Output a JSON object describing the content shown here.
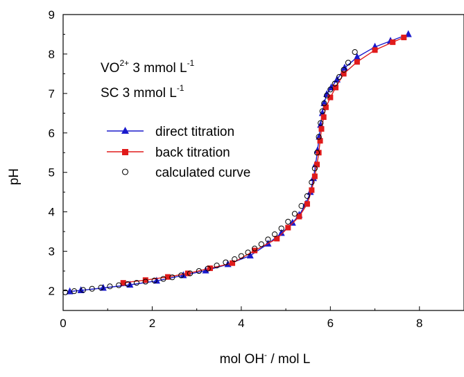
{
  "chart_data": {
    "type": "line",
    "xlabel": "mol OH",
    "xlabel_sup": "-",
    "xlabel_tail": " / mol L",
    "ylabel": "pH",
    "xlim": [
      0,
      9
    ],
    "ylim": [
      1.5,
      9
    ],
    "xticks": [
      0,
      2,
      4,
      6,
      8
    ],
    "yticks": [
      2,
      3,
      4,
      5,
      6,
      7,
      8,
      9
    ],
    "grid": false,
    "legend_position": "upper-left",
    "annotations": [
      {
        "pre": "VO",
        "sup1": "2+",
        "mid": " 3 mmol L",
        "sup2": "-1"
      },
      {
        "pre": "SC   3 mmol L",
        "sup1": "",
        "mid": "",
        "sup2": "-1"
      }
    ],
    "series": [
      {
        "name": "direct titration",
        "color": "#1a1acc",
        "marker": "triangle",
        "x": [
          0.15,
          0.4,
          0.9,
          1.5,
          2.1,
          2.7,
          3.2,
          3.7,
          4.2,
          4.6,
          4.9,
          5.15,
          5.3,
          5.45,
          5.55,
          5.62,
          5.67,
          5.71,
          5.75,
          5.78,
          5.82,
          5.86,
          5.92,
          6.02,
          6.15,
          6.32,
          6.6,
          7.0,
          7.35,
          7.75
        ],
        "y": [
          1.98,
          2.01,
          2.07,
          2.15,
          2.25,
          2.39,
          2.51,
          2.67,
          2.89,
          3.19,
          3.46,
          3.72,
          3.92,
          4.2,
          4.5,
          4.85,
          5.2,
          5.55,
          5.9,
          6.2,
          6.5,
          6.75,
          6.98,
          7.15,
          7.35,
          7.65,
          7.92,
          8.18,
          8.33,
          8.5
        ]
      },
      {
        "name": "back titration",
        "color": "#e01b1b",
        "marker": "square",
        "x": [
          1.35,
          1.85,
          2.35,
          2.8,
          3.3,
          3.8,
          4.3,
          4.8,
          5.05,
          5.3,
          5.48,
          5.58,
          5.65,
          5.7,
          5.74,
          5.77,
          5.8,
          5.85,
          5.9,
          6.0,
          6.12,
          6.3,
          6.6,
          7.0,
          7.4,
          7.65
        ],
        "y": [
          2.2,
          2.27,
          2.35,
          2.44,
          2.57,
          2.7,
          3.02,
          3.32,
          3.6,
          3.88,
          4.2,
          4.55,
          4.9,
          5.2,
          5.5,
          5.8,
          6.1,
          6.4,
          6.65,
          6.9,
          7.15,
          7.5,
          7.8,
          8.1,
          8.3,
          8.42
        ]
      },
      {
        "name": "calculated curve",
        "color": "#000000",
        "marker": "circle-open",
        "x": [
          0.05,
          0.25,
          0.45,
          0.65,
          0.85,
          1.05,
          1.25,
          1.45,
          1.65,
          1.85,
          2.05,
          2.25,
          2.45,
          2.65,
          2.85,
          3.05,
          3.25,
          3.45,
          3.65,
          3.85,
          4.0,
          4.15,
          4.3,
          4.45,
          4.6,
          4.75,
          4.9,
          5.05,
          5.2,
          5.35,
          5.48,
          5.58,
          5.65,
          5.7,
          5.74,
          5.78,
          5.82,
          5.86,
          5.92,
          6.0,
          6.1,
          6.2,
          6.3,
          6.4,
          6.55
        ],
        "y": [
          1.96,
          1.99,
          2.02,
          2.05,
          2.08,
          2.11,
          2.14,
          2.17,
          2.2,
          2.23,
          2.26,
          2.3,
          2.34,
          2.39,
          2.44,
          2.5,
          2.56,
          2.64,
          2.72,
          2.8,
          2.88,
          2.97,
          3.07,
          3.18,
          3.3,
          3.43,
          3.58,
          3.75,
          3.95,
          4.15,
          4.4,
          4.75,
          5.1,
          5.5,
          5.9,
          6.25,
          6.55,
          6.75,
          6.95,
          7.1,
          7.25,
          7.42,
          7.6,
          7.78,
          8.05
        ]
      }
    ]
  }
}
